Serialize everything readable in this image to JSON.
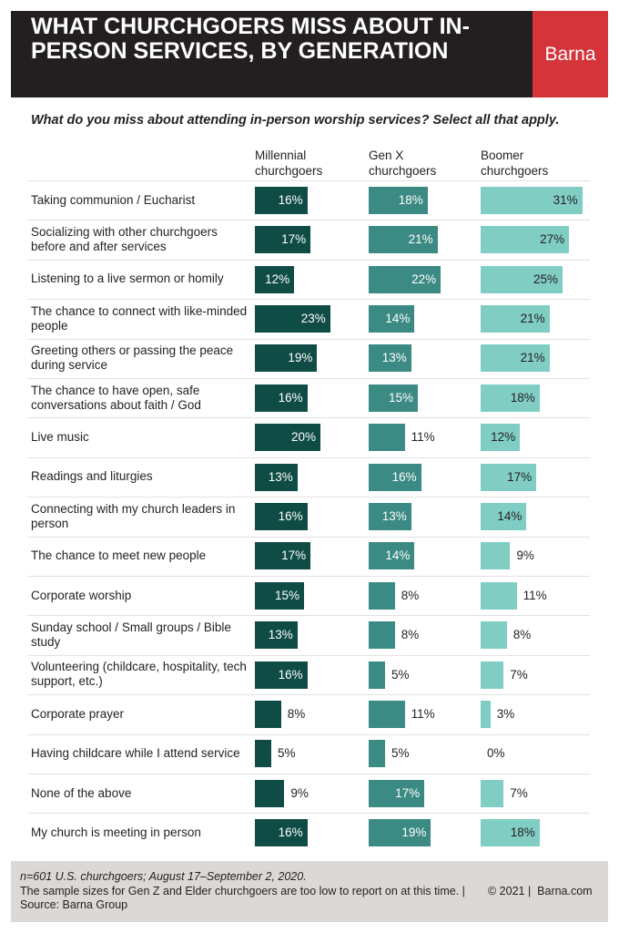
{
  "chart_data": {
    "type": "bar",
    "orientation": "horizontal",
    "title": "WHAT CHURCHGOERS MISS ABOUT IN-PERSON SERVICES, BY GENERATION",
    "brand": "Barna",
    "subtitle": "What do you miss about attending in-person worship services? Select all that apply.",
    "categories": [
      "Taking communion / Eucharist",
      "Socializing with other churchgoers before and after services",
      "Listening to a live sermon or homily",
      "The chance to connect with like-minded people",
      "Greeting others or passing the peace during service",
      "The chance to have open, safe conversations about faith / God",
      "Live music",
      "Readings and liturgies",
      "Connecting with my church leaders in person",
      "The chance to meet new people",
      "Corporate worship",
      "Sunday school / Small groups / Bible study",
      "Volunteering (childcare, hospitality, tech support, etc.)",
      "Corporate prayer",
      "Having childcare while I attend service",
      "None of the above",
      "My church is meeting in person"
    ],
    "series": [
      {
        "name": "Millennial churchgoers",
        "color": "#0f4c45",
        "values": [
          16,
          17,
          12,
          23,
          19,
          16,
          20,
          13,
          16,
          17,
          15,
          13,
          16,
          8,
          5,
          9,
          16
        ],
        "value_labels": [
          "16%",
          "17%",
          "12%",
          "23%",
          "19%",
          "16%",
          "20%",
          "13%",
          "16%",
          "17%",
          "15%",
          "13%",
          "16%",
          "8%",
          "5%",
          "9%",
          "16%"
        ]
      },
      {
        "name": "Gen X churchgoers",
        "color": "#3b8a83",
        "values": [
          18,
          21,
          22,
          14,
          13,
          15,
          11,
          16,
          13,
          14,
          8,
          8,
          5,
          11,
          5,
          17,
          19
        ],
        "value_labels": [
          "18%",
          "21%",
          "22%",
          "14%",
          "13%",
          "15%",
          "11%",
          "16%",
          "13%",
          "14%",
          "8%",
          "8%",
          "5%",
          "11%",
          "5%",
          "17%",
          "19%"
        ]
      },
      {
        "name": "Boomer churchgoers",
        "color": "#80cdc4",
        "values": [
          31,
          27,
          25,
          21,
          21,
          18,
          12,
          17,
          14,
          9,
          11,
          8,
          7,
          3,
          0,
          7,
          18
        ],
        "value_labels": [
          "31%",
          "27%",
          "25%",
          "21%",
          "21%",
          "18%",
          "12%",
          "17%",
          "14%",
          "9%",
          "11%",
          "8%",
          "7%",
          "3%",
          "0%",
          "7%",
          "18%"
        ]
      }
    ]
  },
  "footer": {
    "note": "n=601 U.S. churchgoers; August 17–September 2, 2020.",
    "source": "The sample sizes for Gen Z and Elder churchgoers are too low to report on at this time. | Source: Barna Group",
    "credit": "© 2021 |  Barna.com"
  }
}
